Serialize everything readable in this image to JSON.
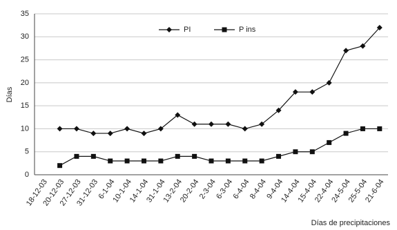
{
  "chart_data": {
    "type": "line",
    "categories": [
      "18-12-03",
      "20-12-03",
      "27-12-03",
      "31-12-03",
      "6-1-04",
      "10-1-04",
      "14-1-04",
      "31-1-04",
      "13-2-04",
      "20-2-04",
      "2-3-04",
      "6-3-04",
      "6-4-04",
      "8-4-04",
      "9-4-04",
      "14-4-04",
      "15-4-04",
      "22-4-04",
      "24-5-04",
      "25-5-04",
      "21-6-04"
    ],
    "series": [
      {
        "name": "PI",
        "color": "#111111",
        "marker": "diamond",
        "values": [
          null,
          10,
          10,
          9,
          9,
          10,
          9,
          10,
          13,
          11,
          11,
          11,
          10,
          11,
          14,
          18,
          18,
          20,
          27,
          28,
          32
        ]
      },
      {
        "name": "P ins",
        "color": "#111111",
        "marker": "square",
        "values": [
          null,
          2,
          4,
          4,
          3,
          3,
          3,
          3,
          4,
          4,
          3,
          3,
          3,
          3,
          4,
          5,
          5,
          7,
          9,
          10,
          10
        ]
      }
    ],
    "ylabel": "Días",
    "xlabel": "Días de precipitaciones",
    "ylim": [
      0,
      35
    ],
    "yticks": [
      0,
      5,
      10,
      15,
      20,
      25,
      30,
      35
    ],
    "grid": true,
    "legend": "top"
  }
}
